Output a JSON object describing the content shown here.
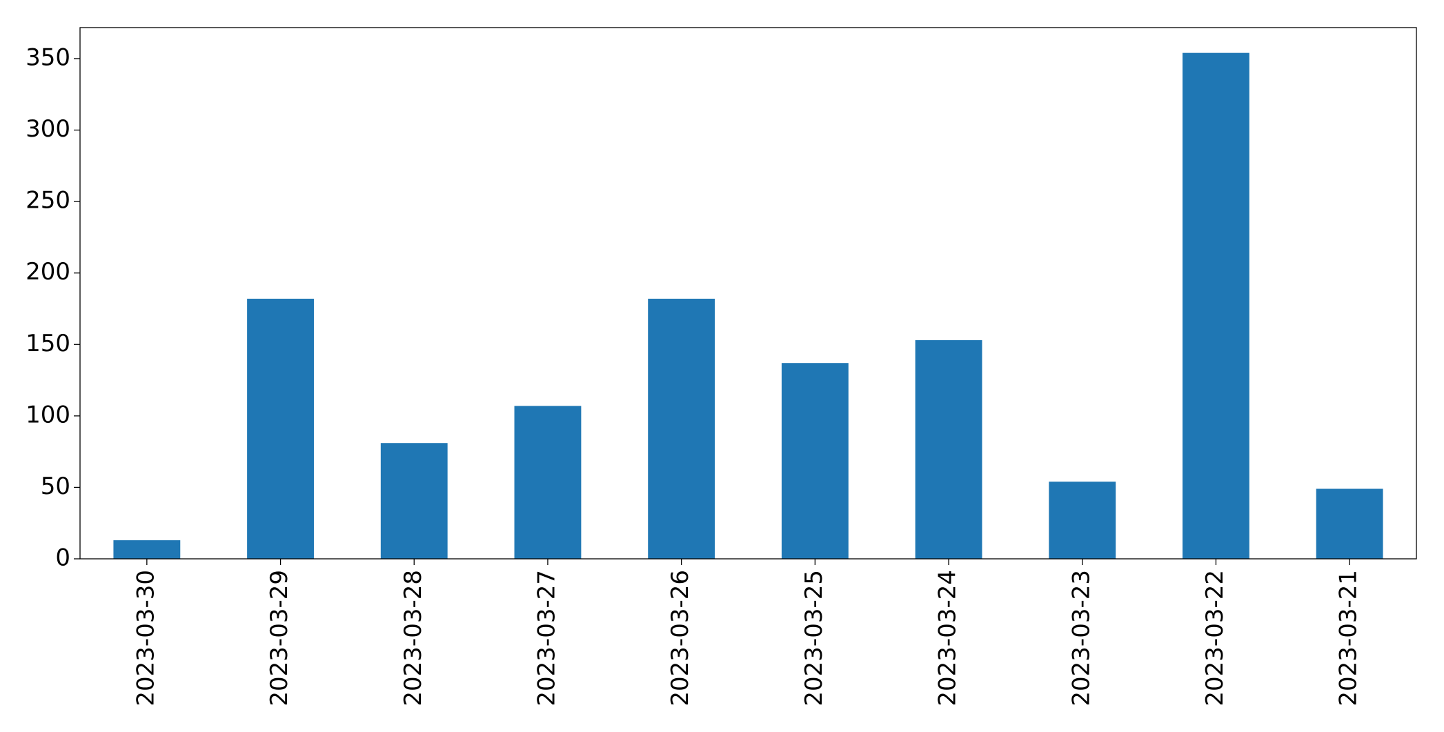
{
  "chart_data": {
    "type": "bar",
    "categories": [
      "2023-03-30",
      "2023-03-29",
      "2023-03-28",
      "2023-03-27",
      "2023-03-26",
      "2023-03-25",
      "2023-03-24",
      "2023-03-23",
      "2023-03-22",
      "2023-03-21"
    ],
    "values": [
      13,
      182,
      81,
      107,
      182,
      137,
      153,
      54,
      354,
      49
    ],
    "color": "#1f77b4",
    "ylim": [
      0,
      371.7
    ],
    "yticks": [
      0,
      50,
      100,
      150,
      200,
      250,
      300,
      350
    ],
    "grid": false
  }
}
